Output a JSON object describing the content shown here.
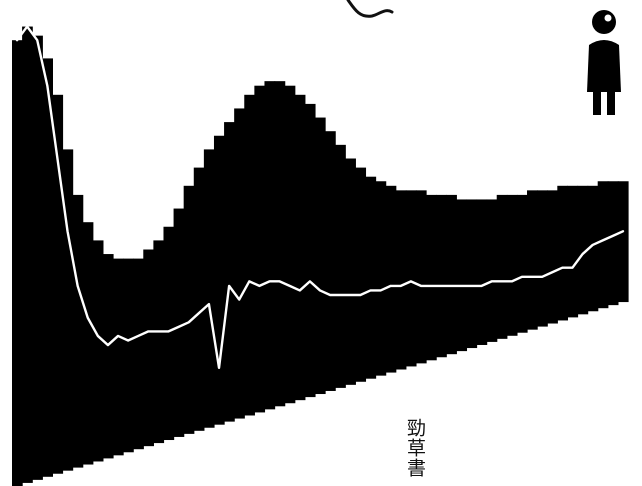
{
  "chart_data": {
    "type": "bar",
    "title": "",
    "xlabel": "",
    "ylabel": "",
    "grid": false,
    "bar_color": "#000000",
    "line_color": "#ffffff",
    "series": [
      {
        "name": "",
        "kind": "bar",
        "values": [
          96,
          99,
          97,
          92,
          84,
          72,
          62,
          56,
          52,
          49,
          48,
          48,
          48,
          50,
          52,
          55,
          59,
          64,
          68,
          72,
          75,
          78,
          81,
          84,
          86,
          87,
          87,
          86,
          84,
          82,
          79,
          76,
          73,
          70,
          68,
          66,
          65,
          64,
          63,
          63,
          63,
          62,
          62,
          62,
          61,
          61,
          61,
          61,
          62,
          62,
          62,
          63,
          63,
          63,
          64,
          64,
          64,
          64,
          65,
          65,
          65
        ]
      },
      {
        "name": "",
        "kind": "line",
        "values": [
          96,
          99,
          96,
          86,
          70,
          54,
          42,
          35,
          31,
          29,
          31,
          30,
          31,
          32,
          32,
          32,
          33,
          34,
          36,
          38,
          24,
          42,
          39,
          43,
          42,
          43,
          43,
          42,
          41,
          43,
          41,
          40,
          40,
          40,
          40,
          41,
          41,
          42,
          42,
          43,
          42,
          42,
          42,
          42,
          42,
          42,
          42,
          43,
          43,
          43,
          44,
          44,
          44,
          45,
          46,
          46,
          49,
          51,
          52,
          53,
          54
        ]
      }
    ]
  },
  "annotations": {
    "vertical_text": "勁草書"
  }
}
